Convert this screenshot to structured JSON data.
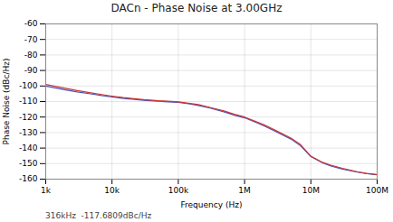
{
  "chart_data": {
    "type": "line",
    "title": "DACn - Phase Noise at 3.00GHz",
    "xlabel": "Frequency (Hz)",
    "ylabel": "Phase Noise (dBc/Hz)",
    "annotation": "316kHz  -117.6809dBc/Hz",
    "log": "x",
    "grid": true,
    "xlim": [
      1000,
      100000000
    ],
    "xticks": [
      {
        "value": 1000,
        "label": "1k"
      },
      {
        "value": 10000,
        "label": "10k"
      },
      {
        "value": 100000,
        "label": "100k"
      },
      {
        "value": 1000000,
        "label": "1M"
      },
      {
        "value": 10000000,
        "label": "10M"
      },
      {
        "value": 100000000,
        "label": "100M"
      }
    ],
    "ylim": [
      -160,
      -60
    ],
    "yticks": [
      -160,
      -150,
      -140,
      -130,
      -120,
      -110,
      -100,
      -90,
      -80,
      -70,
      -60
    ],
    "x": [
      1000,
      1500,
      2000,
      3000,
      5000,
      7000,
      10000,
      15000,
      20000,
      30000,
      50000,
      70000,
      100000,
      150000,
      200000,
      300000,
      500000,
      700000,
      1000000,
      1500000,
      2000000,
      3000000,
      5000000,
      7000000,
      10000000,
      15000000,
      20000000,
      30000000,
      50000000,
      70000000,
      100000000
    ],
    "series": [
      {
        "color": "#4455bb",
        "values": [
          -100.0,
          -101.5,
          -102.5,
          -103.8,
          -105.2,
          -106.2,
          -107.0,
          -108.0,
          -108.5,
          -109.2,
          -109.8,
          -110.2,
          -110.5,
          -111.5,
          -112.5,
          -114.2,
          -116.8,
          -118.8,
          -120.5,
          -123.5,
          -125.8,
          -129.5,
          -134.2,
          -138.5,
          -145.5,
          -149.5,
          -151.5,
          -153.5,
          -155.5,
          -156.5,
          -157.2
        ]
      },
      {
        "color": "#cc3333",
        "values": [
          -99.0,
          -100.5,
          -101.5,
          -103.0,
          -104.5,
          -105.5,
          -106.5,
          -107.5,
          -108.0,
          -108.8,
          -109.5,
          -109.8,
          -110.2,
          -111.2,
          -112.0,
          -113.8,
          -116.2,
          -118.2,
          -120.0,
          -123.0,
          -125.2,
          -128.8,
          -133.5,
          -137.8,
          -145.2,
          -149.2,
          -151.0,
          -153.0,
          -155.2,
          -156.3,
          -157.0
        ]
      }
    ]
  }
}
